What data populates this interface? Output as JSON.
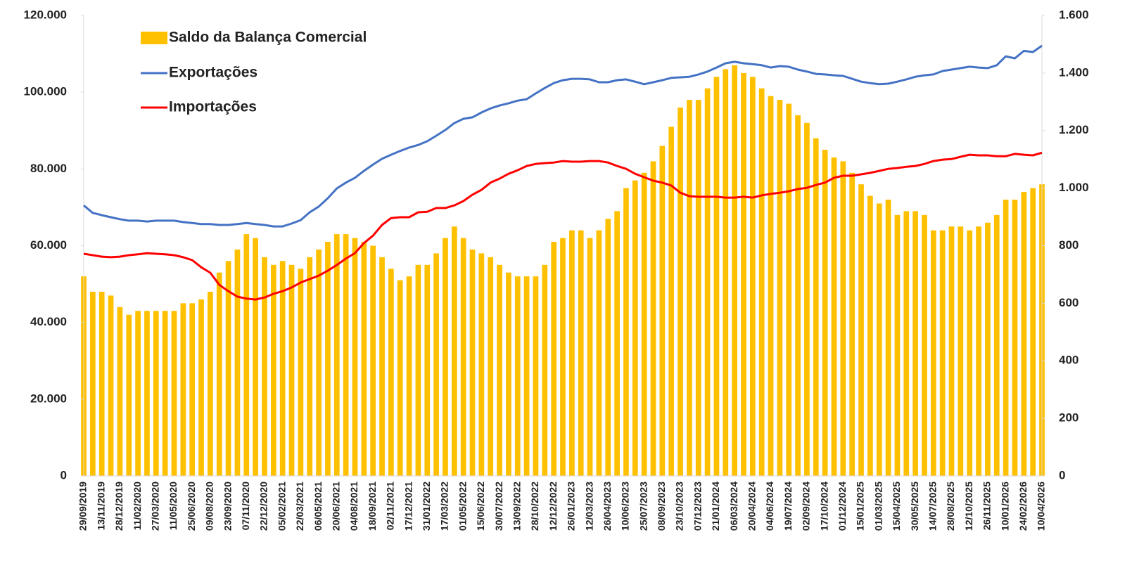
{
  "chart_data": {
    "type": "bar",
    "categories": [
      "29/09/2019",
      null,
      "13/11/2019",
      null,
      "28/12/2019",
      null,
      "11/02/2020",
      null,
      "27/03/2020",
      null,
      "11/05/2020",
      null,
      "25/06/2020",
      null,
      "09/08/2020",
      null,
      "23/09/2020",
      null,
      "07/11/2020",
      null,
      "22/12/2020",
      null,
      "05/02/2021",
      null,
      "22/03/2021",
      null,
      "06/05/2021",
      null,
      "20/06/2021",
      null,
      "04/08/2021",
      null,
      "18/09/2021",
      null,
      "02/11/2021",
      null,
      "17/12/2021",
      null,
      "31/01/2022",
      null,
      "17/03/2022",
      null,
      "01/05/2022",
      null,
      "15/06/2022",
      null,
      "30/07/2022",
      null,
      "13/09/2022",
      null,
      "28/10/2022",
      null,
      "12/12/2022",
      null,
      "26/01/2023",
      null,
      "12/03/2023",
      null,
      "26/04/2023",
      null,
      "10/06/2023",
      null,
      "25/07/2023",
      null,
      "08/09/2023",
      null,
      "23/10/2023",
      null,
      "07/12/2023",
      null,
      "21/01/2024",
      null,
      "06/03/2024",
      null,
      "20/04/2024",
      null,
      "04/06/2024",
      null,
      "19/07/2024",
      null,
      "02/09/2024",
      null,
      "17/10/2024",
      null,
      "01/12/2024",
      null,
      "15/01/2025",
      null,
      "01/03/2025",
      null,
      "15/04/2025",
      null,
      "30/05/2025",
      null,
      "14/07/2025",
      null,
      "28/08/2025",
      null,
      "12/10/2025",
      null,
      "26/11/2025",
      null,
      "10/01/2026",
      null,
      "24/02/2026",
      null,
      "10/04/2026"
    ],
    "series": [
      {
        "name": "Saldo da Balança Comercial",
        "type": "bar",
        "axis": "y",
        "color": "#FFC000",
        "values": [
          52000,
          48000,
          48000,
          47000,
          44000,
          42000,
          43000,
          43000,
          43000,
          43000,
          43000,
          45000,
          45000,
          46000,
          48000,
          53000,
          56000,
          59000,
          63000,
          62000,
          57000,
          55000,
          56000,
          55000,
          54000,
          57000,
          59000,
          61000,
          63000,
          63000,
          62000,
          61000,
          60000,
          57000,
          54000,
          51000,
          52000,
          55000,
          55000,
          58000,
          62000,
          65000,
          62000,
          59000,
          58000,
          57000,
          55000,
          53000,
          52000,
          52000,
          52000,
          55000,
          61000,
          62000,
          64000,
          64000,
          62000,
          64000,
          67000,
          69000,
          75000,
          77000,
          79000,
          82000,
          86000,
          91000,
          96000,
          98000,
          98000,
          101000,
          104000,
          106000,
          107000,
          105000,
          104000,
          101000,
          99000,
          98000,
          97000,
          94000,
          92000,
          88000,
          85000,
          83000,
          82000,
          79000,
          76000,
          73000,
          71000,
          72000,
          68000,
          69000,
          69000,
          68000,
          64000,
          64000,
          65000,
          65000,
          64000,
          65000,
          66000,
          68000,
          72000,
          72000,
          74000,
          75000,
          76000
        ]
      },
      {
        "name": "Exportações",
        "type": "line",
        "axis": "y2",
        "color": "#4472C4",
        "values": [
          940,
          914,
          906,
          899,
          892,
          887,
          887,
          884,
          887,
          887,
          887,
          882,
          879,
          875,
          875,
          872,
          872,
          875,
          879,
          875,
          872,
          867,
          867,
          877,
          889,
          916,
          936,
          965,
          999,
          1019,
          1036,
          1060,
          1082,
          1102,
          1116,
          1129,
          1141,
          1150,
          1163,
          1182,
          1202,
          1226,
          1241,
          1246,
          1263,
          1277,
          1287,
          1295,
          1304,
          1309,
          1329,
          1348,
          1365,
          1375,
          1380,
          1380,
          1378,
          1368,
          1368,
          1375,
          1378,
          1370,
          1361,
          1368,
          1375,
          1383,
          1385,
          1387,
          1395,
          1405,
          1419,
          1434,
          1439,
          1434,
          1431,
          1427,
          1419,
          1424,
          1422,
          1412,
          1405,
          1397,
          1395,
          1392,
          1390,
          1380,
          1370,
          1365,
          1361,
          1363,
          1370,
          1378,
          1387,
          1392,
          1395,
          1407,
          1412,
          1417,
          1422,
          1419,
          1417,
          1427,
          1458,
          1451,
          1477,
          1473,
          1495
        ]
      },
      {
        "name": "Importações",
        "type": "line",
        "axis": "y2",
        "color": "#FF0000",
        "values": [
          772,
          767,
          762,
          760,
          762,
          767,
          770,
          774,
          772,
          770,
          767,
          760,
          750,
          725,
          706,
          664,
          642,
          623,
          616,
          613,
          620,
          633,
          642,
          655,
          672,
          684,
          696,
          713,
          733,
          755,
          774,
          809,
          835,
          872,
          896,
          899,
          899,
          916,
          918,
          931,
          931,
          940,
          955,
          977,
          994,
          1019,
          1033,
          1050,
          1062,
          1077,
          1084,
          1087,
          1089,
          1094,
          1092,
          1092,
          1094,
          1094,
          1089,
          1077,
          1067,
          1050,
          1038,
          1026,
          1019,
          1009,
          984,
          972,
          970,
          970,
          970,
          967,
          967,
          970,
          967,
          975,
          980,
          984,
          989,
          997,
          1001,
          1011,
          1019,
          1036,
          1043,
          1043,
          1048,
          1053,
          1060,
          1067,
          1070,
          1074,
          1077,
          1084,
          1094,
          1099,
          1101,
          1109,
          1116,
          1114,
          1114,
          1111,
          1111,
          1119,
          1116,
          1114,
          1123
        ]
      }
    ],
    "ylim": [
      0,
      120000
    ],
    "yticks": [
      0,
      {
        "value": 20000,
        "label": "20.000"
      },
      {
        "value": 40000,
        "label": "40.000"
      },
      {
        "value": 60000,
        "label": "60.000"
      },
      {
        "value": 80000,
        "label": "80.000"
      },
      {
        "value": 100000,
        "label": "100.000"
      },
      {
        "value": 120000,
        "label": "120.000"
      }
    ],
    "y2lim": [
      0,
      1600
    ],
    "y2ticks": [
      0,
      200,
      400,
      600,
      800,
      {
        "value": 1000,
        "label": "1.000"
      },
      {
        "value": 1200,
        "label": "1.200"
      },
      {
        "value": 1400,
        "label": "1.400"
      },
      {
        "value": 1600,
        "label": "1.600"
      }
    ],
    "grid": false,
    "legend": "upper-left"
  }
}
